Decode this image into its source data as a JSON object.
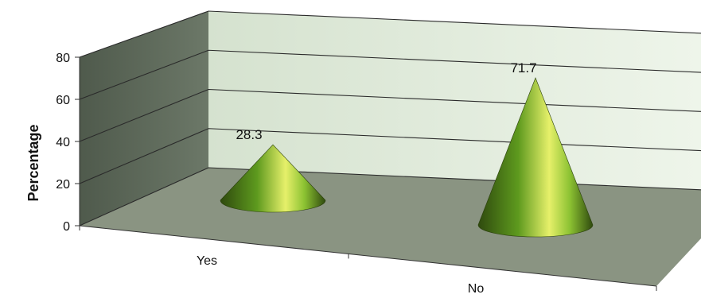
{
  "chart_data": {
    "type": "bar",
    "style": "3d-cone",
    "categories": [
      "Yes",
      "No"
    ],
    "values": [
      28.3,
      71.7
    ],
    "data_labels": [
      "28.3",
      "71.7"
    ],
    "ylabel": "Percentage",
    "xlabel": "",
    "ylim": [
      0,
      80
    ],
    "yticks": [
      "0",
      "20",
      "40",
      "60",
      "80"
    ],
    "grid": true,
    "colors": {
      "back_wall": "#e6efe1",
      "side_wall": "#5f6b5c",
      "floor": "#8a9482",
      "gridline": "#2a2a2a",
      "cone_dark": "#3a5a12",
      "cone_mid": "#7fb82e",
      "cone_light": "#e6f06a"
    }
  }
}
